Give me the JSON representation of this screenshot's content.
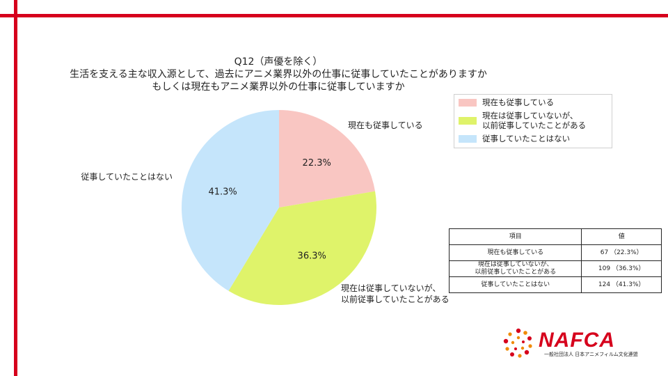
{
  "title_lines": [
    "Q12（声優を除く）",
    "生活を支える主な収入源として、過去にアニメ業界以外の仕事に従事していたことがありますか",
    "もしくは現在もアニメ業界以外の仕事に従事していますか"
  ],
  "chart_data": {
    "type": "pie",
    "title": "Q12（声優を除く）生活を支える主な収入源として、過去にアニメ業界以外の仕事に従事していたことがありますか もしくは現在もアニメ業界以外の仕事に従事していますか",
    "categories": [
      "現在も従事している",
      "現在は従事していないが、\n以前従事していたことがある",
      "従事していたことはない"
    ],
    "values": [
      67,
      109,
      124
    ],
    "percent_labels": [
      "22.3%",
      "36.3%",
      "41.3%"
    ],
    "colors": [
      "#f9c6c2",
      "#dff36a",
      "#c5e5fb"
    ],
    "legend_placement": "top-right",
    "start_angle": "12 o'clock, clockwise"
  },
  "legend": {
    "items": [
      {
        "label": "現在も従事している",
        "color": "#f9c6c2"
      },
      {
        "label": "現在は従事していないが、\n以前従事していたことがある",
        "color": "#dff36a"
      },
      {
        "label": "従事していたことはない",
        "color": "#c5e5fb"
      }
    ]
  },
  "table": {
    "headers": [
      "項目",
      "値"
    ],
    "rows": [
      [
        "現在も従事している",
        "67 （22.3%）"
      ],
      [
        "現在は従事していないが、\n以前従事していたことがある",
        "109 （36.3%）"
      ],
      [
        "従事していたことはない",
        "124 （41.3%）"
      ]
    ]
  },
  "logo": {
    "name": "NAFCA",
    "subtitle": "一般社団法人 日本アニメフィルム文化連盟",
    "color": "#d6001c"
  },
  "frame_color": "#d6001c"
}
